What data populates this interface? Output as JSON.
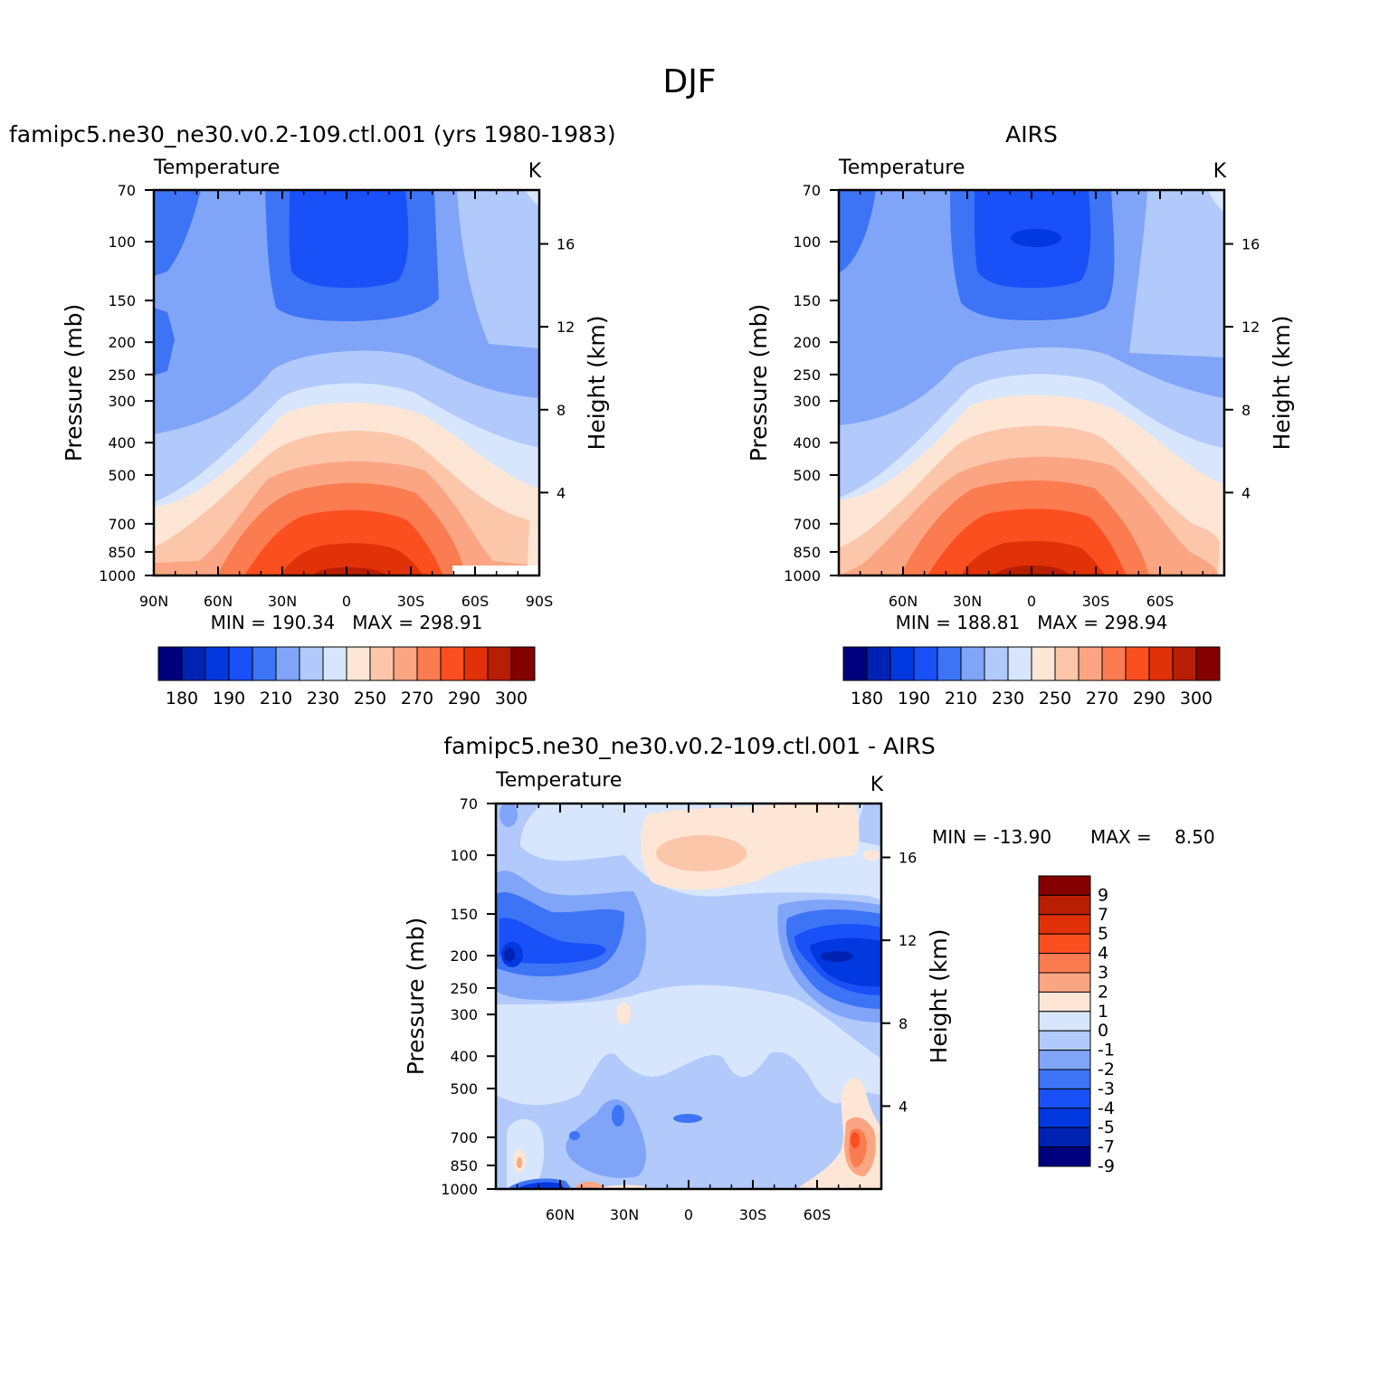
{
  "figure": {
    "title": "DJF"
  },
  "colors": {
    "abs_scale": [
      "#00007f",
      "#0022b3",
      "#0138e0",
      "#1a50f7",
      "#3d74f6",
      "#80a5f8",
      "#b1c9fb",
      "#d7e6fc",
      "#fde6d6",
      "#fcc6ab",
      "#fba583",
      "#fb7c50",
      "#fb4f1f",
      "#e03108",
      "#b71e03",
      "#840000"
    ],
    "diff_scale": [
      "#00007f",
      "#0022b3",
      "#0138e0",
      "#1a50f7",
      "#3d74f6",
      "#80a5f8",
      "#b1c9fb",
      "#d7e6fc",
      "#fde6d6",
      "#fba583",
      "#fb7c50",
      "#fb4f1f",
      "#e03108",
      "#b71e03",
      "#840000"
    ]
  },
  "chart_data": [
    {
      "id": "model",
      "type": "heatmap",
      "title": "famipc5.ne30_ne30.v0.2-109.ctl.001 (yrs 1980-1983)",
      "subtitle": "Temperature",
      "units": "K",
      "ylabel": "Pressure (mb)",
      "y2label": "Height (km)",
      "x_ticks": [
        "90N",
        "60N",
        "30N",
        "0",
        "30S",
        "60S",
        "90S"
      ],
      "y_ticks": [
        "70",
        "100",
        "150",
        "200",
        "250",
        "300",
        "400",
        "500",
        "700",
        "850",
        "1000"
      ],
      "y2_ticks": [
        "16",
        "12",
        "8",
        "4"
      ],
      "stats": "MIN = 190.34   MAX = 298.91",
      "colorbar_labels": [
        "180",
        "190",
        "210",
        "230",
        "250",
        "270",
        "290",
        "300"
      ],
      "scale": "abs"
    },
    {
      "id": "obs",
      "type": "heatmap",
      "title": "AIRS",
      "subtitle": "Temperature",
      "units": "K",
      "ylabel": "Pressure (mb)",
      "y2label": "Height (km)",
      "x_ticks": [
        "60N",
        "30N",
        "0",
        "30S",
        "60S"
      ],
      "y_ticks": [
        "70",
        "100",
        "150",
        "200",
        "250",
        "300",
        "400",
        "500",
        "700",
        "850",
        "1000"
      ],
      "y2_ticks": [
        "16",
        "12",
        "8",
        "4"
      ],
      "stats": "MIN = 188.81   MAX = 298.94",
      "colorbar_labels": [
        "180",
        "190",
        "210",
        "230",
        "250",
        "270",
        "290",
        "300"
      ],
      "scale": "abs"
    },
    {
      "id": "diff",
      "type": "heatmap",
      "title": "famipc5.ne30_ne30.v0.2-109.ctl.001 - AIRS",
      "subtitle": "Temperature",
      "units": "K",
      "ylabel": "Pressure (mb)",
      "y2label": "Height (km)",
      "x_ticks": [
        "60N",
        "30N",
        "0",
        "30S",
        "60S"
      ],
      "y_ticks": [
        "70",
        "100",
        "150",
        "200",
        "250",
        "300",
        "400",
        "500",
        "700",
        "850",
        "1000"
      ],
      "y2_ticks": [
        "16",
        "12",
        "8",
        "4"
      ],
      "stats_min": "MIN = -13.90",
      "stats_max": "MAX =    8.50",
      "colorbar_labels": [
        "9",
        "7",
        "5",
        "4",
        "3",
        "2",
        "1",
        "0",
        "-1",
        "-2",
        "-3",
        "-4",
        "-5",
        "-7",
        "-9"
      ],
      "scale": "diff"
    }
  ]
}
